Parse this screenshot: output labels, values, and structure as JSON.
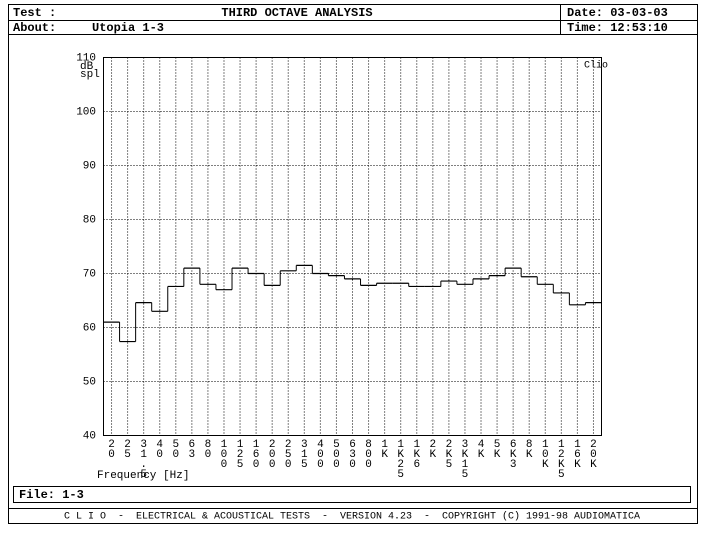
{
  "header": {
    "test_label": "Test :",
    "about_label": "About:",
    "about": "Utopia 1-3",
    "date": "Date: 03-03-03",
    "time": "Time: 12:53:10"
  },
  "chart_data": {
    "type": "step",
    "title": "THIRD OCTAVE ANALYSIS",
    "y_label": [
      "dB",
      "spl"
    ],
    "x_label": "Frequency [Hz]",
    "annotation": "Clio",
    "categories": [
      "20",
      "25",
      "31.5",
      "40",
      "50",
      "63",
      "80",
      "100",
      "125",
      "160",
      "200",
      "250",
      "315",
      "400",
      "500",
      "630",
      "800",
      "1K",
      "1K25",
      "1K6",
      "2K",
      "2K5",
      "3K15",
      "4K",
      "5K",
      "6K3",
      "8K",
      "10K",
      "12K5",
      "16K",
      "20K"
    ],
    "values": [
      61,
      57.4,
      64.6,
      63,
      67.6,
      71,
      68,
      67,
      71,
      70,
      67.8,
      70.5,
      71.5,
      70,
      69.6,
      69,
      67.8,
      68.2,
      68.2,
      67.6,
      67.6,
      68.6,
      68,
      69,
      69.6,
      71,
      69.4,
      68,
      66.4,
      64.2,
      64.6
    ],
    "color": "#000000",
    "ylim": [
      40,
      110
    ],
    "yticks": [
      40,
      50,
      60,
      70,
      80,
      90,
      100,
      110
    ],
    "grid": true
  },
  "file": "File: 1-3",
  "footer": "C L I O  -  ELECTRICAL & ACOUSTICAL TESTS  -  VERSION 4.23  -  COPYRIGHT (C) 1991-98 AUDIOMATICA"
}
